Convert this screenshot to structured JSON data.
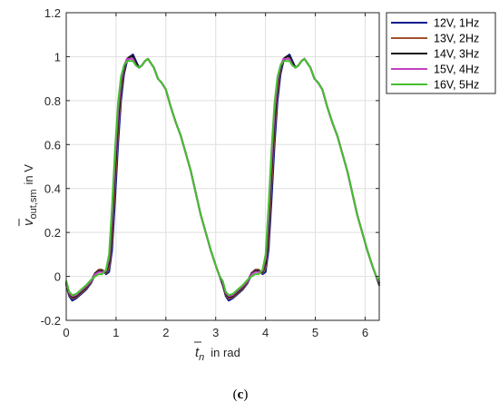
{
  "chart_data": {
    "type": "line",
    "xlabel_main": "t",
    "xlabel_sub": "n",
    "xlabel_unit": "in rad",
    "ylabel_main": "v",
    "ylabel_sub": "out,sm",
    "ylabel_unit": "in V",
    "panel_label_open": "(",
    "panel_label_letter": "c",
    "panel_label_close": ")",
    "xlim": [
      0,
      6.283
    ],
    "ylim": [
      -0.2,
      1.2
    ],
    "xticks": [
      "0",
      "1",
      "2",
      "3",
      "4",
      "5",
      "6"
    ],
    "yticks": [
      "-0.2",
      "0",
      "0.2",
      "0.4",
      "0.6",
      "0.8",
      "1",
      "1.2"
    ],
    "grid": true,
    "legend_position": "outside-top-right",
    "series": [
      {
        "name": "12V, 1Hz",
        "color": "#0a1a8c",
        "x": [
          0,
          0.06,
          0.12,
          0.2,
          0.3,
          0.4,
          0.5,
          0.58,
          0.65,
          0.72,
          0.8,
          0.86,
          0.92,
          0.98,
          1.04,
          1.1,
          1.16,
          1.22,
          1.28,
          1.34,
          1.4,
          1.46,
          1.52,
          1.58,
          1.64,
          1.7,
          1.76,
          1.84,
          1.92,
          2.0,
          2.1,
          2.2,
          2.3,
          2.4,
          2.5,
          2.6,
          2.7,
          2.8,
          2.9,
          3.0,
          3.08,
          3.14
        ],
        "y": [
          -0.04,
          -0.09,
          -0.11,
          -0.1,
          -0.08,
          -0.06,
          -0.03,
          0.01,
          0.03,
          0.03,
          0.01,
          0.02,
          0.12,
          0.35,
          0.6,
          0.8,
          0.92,
          0.98,
          1.0,
          1.01,
          0.98,
          0.95,
          0.96,
          0.98,
          0.99,
          0.97,
          0.95,
          0.9,
          0.88,
          0.85,
          0.77,
          0.7,
          0.64,
          0.56,
          0.48,
          0.38,
          0.28,
          0.2,
          0.12,
          0.05,
          0.0,
          -0.04
        ]
      },
      {
        "name": "13V, 2Hz",
        "color": "#a0522d",
        "x": [
          0,
          0.06,
          0.12,
          0.2,
          0.3,
          0.4,
          0.5,
          0.58,
          0.65,
          0.72,
          0.8,
          0.86,
          0.92,
          0.98,
          1.04,
          1.1,
          1.16,
          1.22,
          1.28,
          1.34,
          1.4,
          1.46,
          1.52,
          1.58,
          1.64,
          1.7,
          1.76,
          1.84,
          1.92,
          2.0,
          2.1,
          2.2,
          2.3,
          2.4,
          2.5,
          2.6,
          2.7,
          2.8,
          2.9,
          3.0,
          3.08,
          3.14
        ],
        "y": [
          -0.035,
          -0.085,
          -0.1,
          -0.095,
          -0.075,
          -0.055,
          -0.025,
          0.015,
          0.03,
          0.03,
          0.015,
          0.04,
          0.17,
          0.42,
          0.66,
          0.84,
          0.94,
          0.99,
          1.0,
          1.0,
          0.97,
          0.95,
          0.96,
          0.98,
          0.99,
          0.97,
          0.95,
          0.9,
          0.88,
          0.85,
          0.77,
          0.7,
          0.64,
          0.56,
          0.48,
          0.38,
          0.28,
          0.2,
          0.12,
          0.05,
          0.0,
          -0.035
        ]
      },
      {
        "name": "14V, 3Hz",
        "color": "#111111",
        "x": [
          0,
          0.06,
          0.12,
          0.2,
          0.3,
          0.4,
          0.5,
          0.58,
          0.65,
          0.72,
          0.8,
          0.86,
          0.92,
          0.98,
          1.04,
          1.1,
          1.16,
          1.22,
          1.28,
          1.34,
          1.4,
          1.46,
          1.52,
          1.58,
          1.64,
          1.7,
          1.76,
          1.84,
          1.92,
          2.0,
          2.1,
          2.2,
          2.3,
          2.4,
          2.5,
          2.6,
          2.7,
          2.8,
          2.9,
          3.0,
          3.08,
          3.14
        ],
        "y": [
          -0.03,
          -0.08,
          -0.095,
          -0.09,
          -0.07,
          -0.05,
          -0.02,
          0.015,
          0.025,
          0.025,
          0.02,
          0.06,
          0.22,
          0.48,
          0.71,
          0.87,
          0.95,
          0.99,
          1.0,
          1.0,
          0.97,
          0.95,
          0.96,
          0.98,
          0.99,
          0.97,
          0.95,
          0.9,
          0.88,
          0.85,
          0.77,
          0.7,
          0.64,
          0.56,
          0.48,
          0.38,
          0.28,
          0.2,
          0.12,
          0.05,
          0.0,
          -0.03
        ]
      },
      {
        "name": "15V, 4Hz",
        "color": "#c040c0",
        "x": [
          0,
          0.06,
          0.12,
          0.2,
          0.3,
          0.4,
          0.5,
          0.58,
          0.65,
          0.72,
          0.8,
          0.86,
          0.92,
          0.98,
          1.04,
          1.1,
          1.16,
          1.22,
          1.28,
          1.34,
          1.4,
          1.46,
          1.52,
          1.58,
          1.64,
          1.7,
          1.76,
          1.84,
          1.92,
          2.0,
          2.1,
          2.2,
          2.3,
          2.4,
          2.5,
          2.6,
          2.7,
          2.8,
          2.9,
          3.0,
          3.08,
          3.14
        ],
        "y": [
          -0.025,
          -0.075,
          -0.09,
          -0.085,
          -0.065,
          -0.045,
          -0.02,
          0.01,
          0.02,
          0.02,
          0.025,
          0.08,
          0.27,
          0.53,
          0.75,
          0.89,
          0.96,
          0.99,
          0.99,
          0.99,
          0.96,
          0.95,
          0.96,
          0.98,
          0.99,
          0.97,
          0.95,
          0.9,
          0.88,
          0.85,
          0.77,
          0.7,
          0.64,
          0.56,
          0.48,
          0.38,
          0.28,
          0.2,
          0.12,
          0.05,
          0.0,
          -0.025
        ]
      },
      {
        "name": "16V, 5Hz",
        "color": "#44c030",
        "x": [
          0,
          0.06,
          0.12,
          0.2,
          0.3,
          0.4,
          0.5,
          0.58,
          0.65,
          0.72,
          0.8,
          0.86,
          0.92,
          0.98,
          1.04,
          1.1,
          1.16,
          1.22,
          1.28,
          1.34,
          1.4,
          1.46,
          1.52,
          1.58,
          1.64,
          1.7,
          1.76,
          1.84,
          1.92,
          2.0,
          2.1,
          2.2,
          2.3,
          2.4,
          2.5,
          2.6,
          2.7,
          2.8,
          2.9,
          3.0,
          3.08,
          3.14
        ],
        "y": [
          -0.02,
          -0.07,
          -0.085,
          -0.08,
          -0.06,
          -0.04,
          -0.015,
          0.0,
          0.01,
          0.01,
          0.03,
          0.1,
          0.32,
          0.58,
          0.79,
          0.91,
          0.96,
          0.98,
          0.98,
          0.98,
          0.96,
          0.95,
          0.96,
          0.98,
          0.99,
          0.97,
          0.95,
          0.9,
          0.88,
          0.85,
          0.77,
          0.7,
          0.64,
          0.56,
          0.48,
          0.38,
          0.28,
          0.2,
          0.12,
          0.05,
          0.0,
          -0.02
        ]
      }
    ]
  }
}
